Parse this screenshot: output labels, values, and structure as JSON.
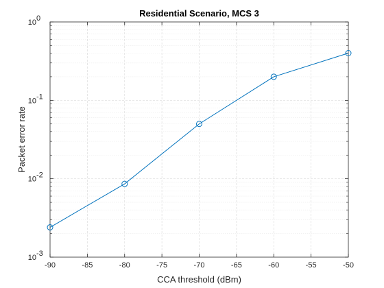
{
  "chart_data": {
    "type": "line",
    "title": "Residential Scenario, MCS 3",
    "xlabel": "CCA threshold (dBm)",
    "ylabel": "Packet error rate",
    "xlim": [
      -90,
      -50
    ],
    "ylim": [
      0.001,
      1
    ],
    "yscale": "log",
    "grid": true,
    "minor_grid": true,
    "x_ticks": [
      -90,
      -85,
      -80,
      -75,
      -70,
      -65,
      -60,
      -55,
      -50
    ],
    "x_tick_labels": [
      "-90",
      "-85",
      "-80",
      "-75",
      "-70",
      "-65",
      "-60",
      "-55",
      "-50"
    ],
    "y_ticks": [
      0.001,
      0.01,
      0.1,
      1
    ],
    "y_tick_labels": [
      {
        "base": "10",
        "exp": "-3"
      },
      {
        "base": "10",
        "exp": "-2"
      },
      {
        "base": "10",
        "exp": "-1"
      },
      {
        "base": "10",
        "exp": "0"
      }
    ],
    "series": [
      {
        "x": [
          -90,
          -80,
          -70,
          -60,
          -50
        ],
        "y": [
          0.0024,
          0.0086,
          0.05,
          0.2,
          0.4
        ],
        "marker": "circle",
        "color": "#0072BD"
      }
    ],
    "colors": {
      "axis": "#262626",
      "grid": "#dcdcdc",
      "minor_grid": "#ebebeb",
      "line": "#0072BD"
    }
  }
}
